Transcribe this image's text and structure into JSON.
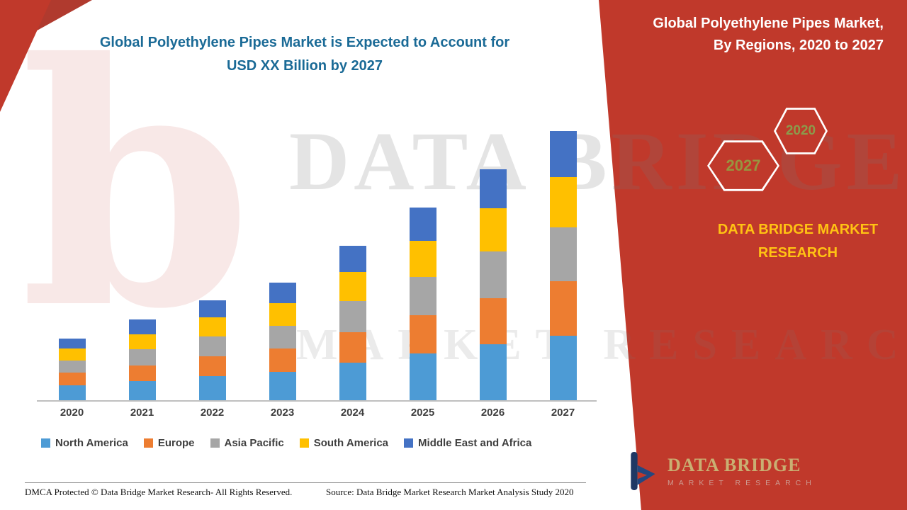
{
  "headline": {
    "line1": "Global Polyethylene Pipes Market is Expected to Account for",
    "line2": "USD XX Billion by 2027"
  },
  "panel": {
    "title": "Global Polyethylene Pipes Market, By Regions, 2020 to 2027",
    "badge_front": "2027",
    "badge_back": "2020",
    "brand": "DATA BRIDGE MARKET RESEARCH",
    "logo_name": "DATA BRIDGE",
    "logo_subtitle": "MARKET RESEARCH"
  },
  "watermark": {
    "logo_letter": "b",
    "line1": "DATA BRIDGE",
    "line2": "MARKET RESEARCH"
  },
  "footer": {
    "dmca": "DMCA Protected © Data Bridge Market Research- All Rights Reserved.",
    "source": "Source: Data Bridge Market Research Market Analysis Study 2020"
  },
  "colors": {
    "panel_red": "#C0392B",
    "headline_teal": "#1A6A96",
    "brand_yellow": "#FFC213"
  },
  "chart_data": {
    "type": "bar",
    "stacked": true,
    "title": "Global Polyethylene Pipes Market, By Regions, 2020 to 2027",
    "xlabel": "",
    "ylabel": "",
    "units": "relative estimate (actual values undisclosed: USD XX Billion)",
    "legend_position": "bottom",
    "gridlines": false,
    "categories": [
      "2020",
      "2021",
      "2022",
      "2023",
      "2024",
      "2025",
      "2026",
      "2027"
    ],
    "series": [
      {
        "name": "North America",
        "color": "#4D9BD5",
        "values": [
          1.8,
          2.3,
          2.9,
          3.4,
          4.5,
          5.6,
          6.7,
          7.8
        ]
      },
      {
        "name": "Europe",
        "color": "#ED7D31",
        "values": [
          1.5,
          1.9,
          2.4,
          2.8,
          3.7,
          4.6,
          5.6,
          6.5
        ]
      },
      {
        "name": "Asia Pacific",
        "color": "#A6A6A6",
        "values": [
          1.5,
          1.9,
          2.4,
          2.8,
          3.7,
          4.6,
          5.6,
          6.5
        ]
      },
      {
        "name": "South America",
        "color": "#FFC000",
        "values": [
          1.4,
          1.8,
          2.3,
          2.7,
          3.5,
          4.4,
          5.2,
          6.1
        ]
      },
      {
        "name": "Middle East and Africa",
        "color": "#4472C4",
        "values": [
          1.2,
          1.8,
          2.0,
          2.5,
          3.2,
          4.0,
          4.7,
          5.5
        ]
      }
    ]
  }
}
